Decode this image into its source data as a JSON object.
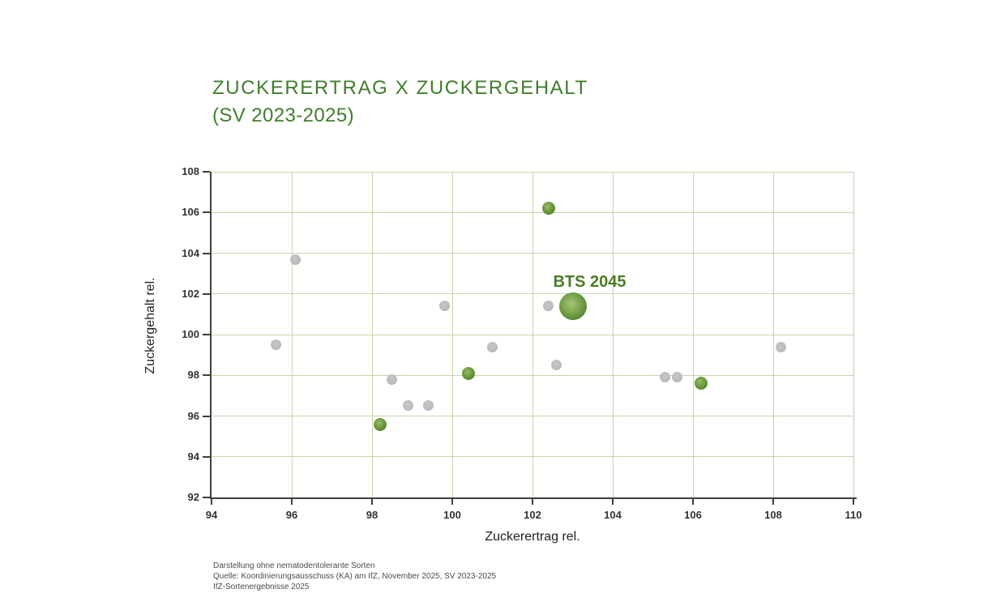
{
  "title": {
    "line1": "ZUCKERERTRAG X ZUCKERGEHALT",
    "line2": "(SV 2023-2025)"
  },
  "chart_data": {
    "type": "scatter",
    "title": "ZUCKERERTRAG X ZUCKERGEHALT (SV 2023-2025)",
    "xlabel": "Zuckerertrag rel.",
    "ylabel": "Zuckergehalt rel.",
    "xlim": [
      94,
      110
    ],
    "ylim": [
      92,
      108
    ],
    "x_ticks": [
      94,
      96,
      98,
      100,
      102,
      104,
      106,
      108,
      110
    ],
    "y_ticks": [
      92,
      94,
      96,
      98,
      100,
      102,
      104,
      106,
      108
    ],
    "grid": true,
    "legend": "none",
    "series": [
      {
        "id": "gray-dots",
        "color": "#bdbdbd",
        "marker_size": 13,
        "points": [
          [
            96.1,
            103.7
          ],
          [
            95.6,
            99.5
          ],
          [
            99.8,
            101.4
          ],
          [
            102.4,
            101.4
          ],
          [
            101.0,
            99.4
          ],
          [
            102.6,
            98.5
          ],
          [
            98.5,
            97.8
          ],
          [
            98.9,
            96.5
          ],
          [
            99.4,
            96.5
          ],
          [
            105.3,
            97.9
          ],
          [
            105.6,
            97.9
          ],
          [
            108.2,
            99.4
          ]
        ]
      },
      {
        "id": "green-dots",
        "color": "#5d8f33",
        "marker_size": 16,
        "points": [
          [
            102.4,
            106.2
          ],
          [
            100.4,
            98.1
          ],
          [
            98.2,
            95.6
          ],
          [
            106.2,
            97.6
          ]
        ]
      },
      {
        "id": "bts-2045-bubble",
        "color": "#5d8f33",
        "marker_size": 34,
        "label": "BTS 2045",
        "points": [
          [
            103.0,
            101.4
          ]
        ]
      }
    ],
    "annotations": [
      {
        "text": "BTS 2045",
        "x": 103.0,
        "y": 101.4
      }
    ]
  },
  "colors": {
    "title_green": "#3f7e2b",
    "annotation_green": "#4a7d22",
    "dot_green": "#5d8f33",
    "dot_gray": "#bdbdbd",
    "gridline": "#c9d4ab",
    "axis": "#3f3f3f"
  },
  "footer": {
    "lines": [
      "Darstellung ohne nematodentolerante Sorten",
      "Quelle: Koordinierungsausschuss (KA) am IfZ, November 2025, SV 2023-2025",
      "IfZ-Sortenergebnisse 2025"
    ]
  }
}
